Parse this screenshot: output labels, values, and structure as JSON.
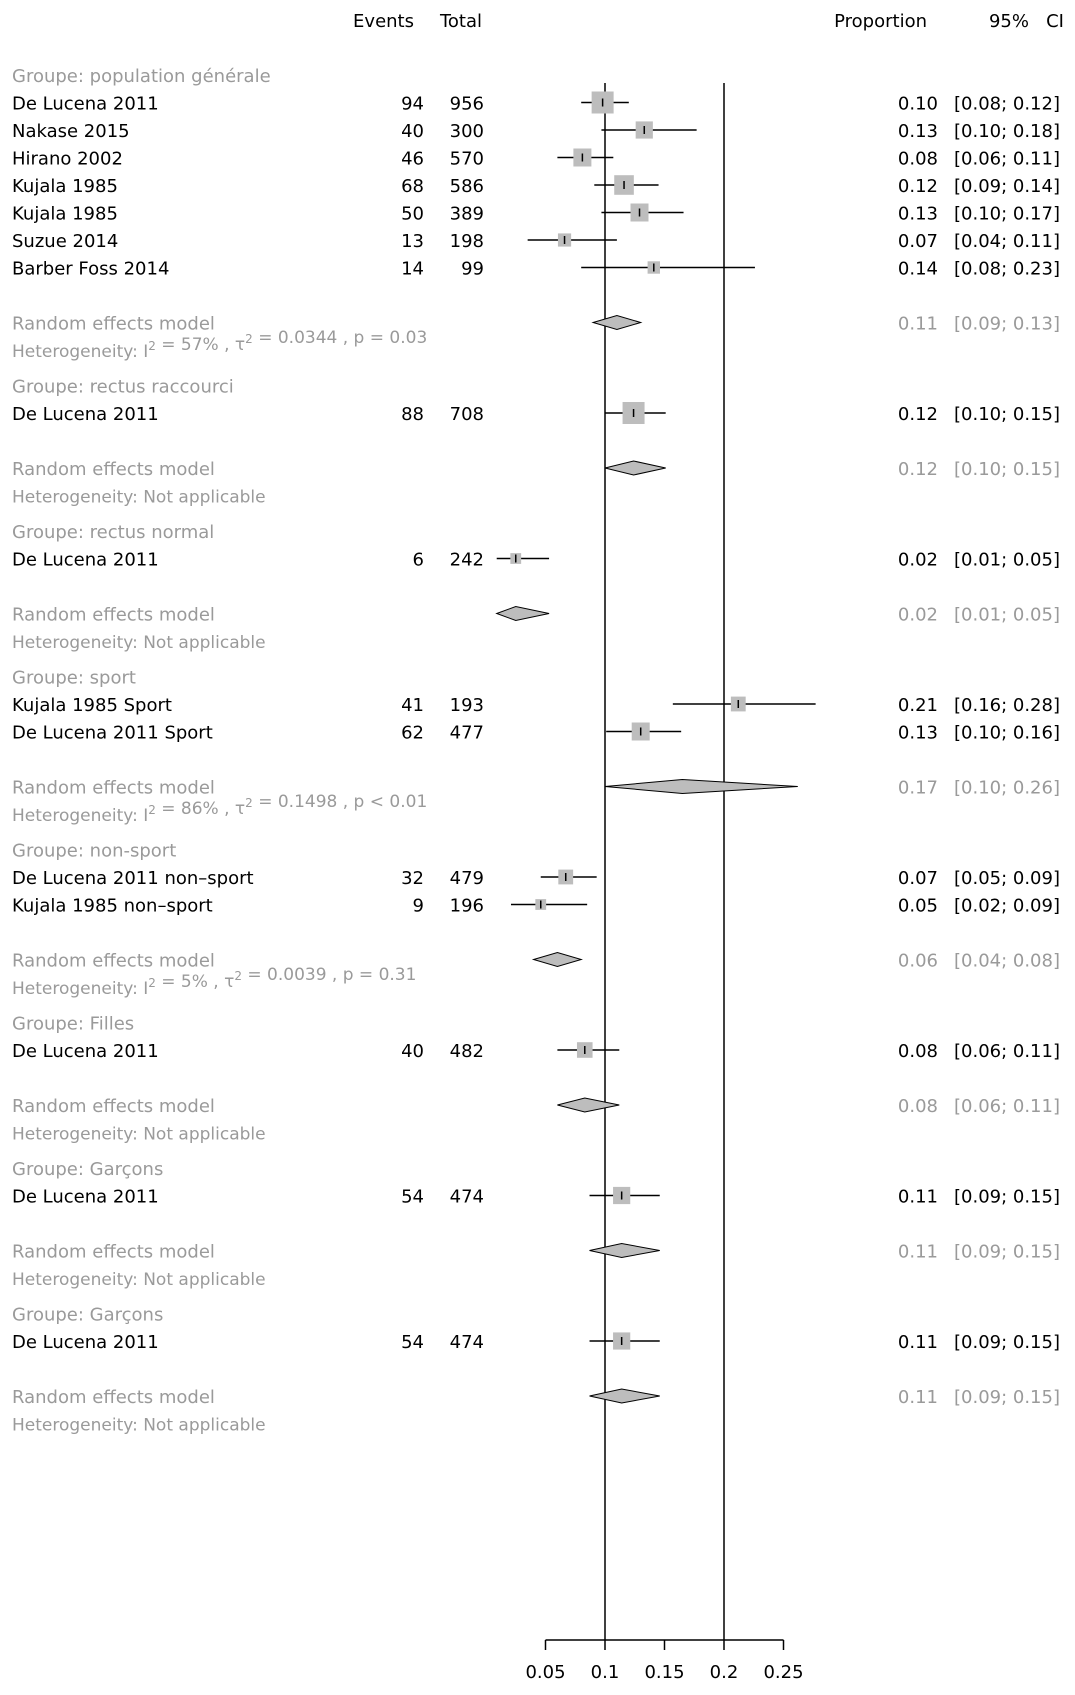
{
  "chart_data": {
    "type": "forest",
    "headers": {
      "events": "Events",
      "total": "Total",
      "proportion": "Proportion",
      "ci": "95%   CI"
    },
    "x_axis": {
      "ticks": [
        0.05,
        0.1,
        0.15,
        0.2,
        0.25
      ],
      "tick_labels": [
        "0.05",
        "0.1",
        "0.15",
        "0.2",
        "0.25"
      ],
      "range": [
        0.05,
        0.25
      ]
    },
    "reference_lines": [
      0.1,
      0.2
    ],
    "groups": [
      {
        "label": "Groupe: population générale",
        "studies": [
          {
            "name": "De Lucena 2011",
            "events": "94",
            "total": "956",
            "prop": "0.10",
            "ci": "[0.08; 0.12]",
            "est": 0.098,
            "lo": 0.08,
            "hi": 0.12,
            "w": 1.0
          },
          {
            "name": "Nakase 2015",
            "events": "40",
            "total": "300",
            "prop": "0.13",
            "ci": "[0.10; 0.18]",
            "est": 0.133,
            "lo": 0.097,
            "hi": 0.177,
            "w": 0.7
          },
          {
            "name": "Hirano 2002",
            "events": "46",
            "total": "570",
            "prop": "0.08",
            "ci": "[0.06; 0.11]",
            "est": 0.081,
            "lo": 0.06,
            "hi": 0.107,
            "w": 0.75
          },
          {
            "name": "Kujala 1985",
            "events": "68",
            "total": "586",
            "prop": "0.12",
            "ci": "[0.09; 0.14]",
            "est": 0.116,
            "lo": 0.091,
            "hi": 0.145,
            "w": 0.85
          },
          {
            "name": "Kujala 1985",
            "events": "50",
            "total": "389",
            "prop": "0.13",
            "ci": "[0.10; 0.17]",
            "est": 0.129,
            "lo": 0.097,
            "hi": 0.166,
            "w": 0.75
          },
          {
            "name": "Suzue 2014",
            "events": "13",
            "total": "198",
            "prop": "0.07",
            "ci": "[0.04; 0.11]",
            "est": 0.066,
            "lo": 0.035,
            "hi": 0.11,
            "w": 0.45
          },
          {
            "name": "Barber Foss 2014",
            "events": "14",
            "total": "99",
            "prop": "0.14",
            "ci": "[0.08; 0.23]",
            "est": 0.141,
            "lo": 0.08,
            "hi": 0.226,
            "w": 0.4
          }
        ],
        "model": {
          "label": "Random effects model",
          "prop": "0.11",
          "ci": "[0.09; 0.13]",
          "est": 0.11,
          "lo": 0.09,
          "hi": 0.13
        },
        "heterogeneity": {
          "kind": "stats",
          "prefix": "Heterogeneity:  I",
          "i2": " = 57% ,  τ",
          "tau2": " = 0.0344 ,  p = 0.03"
        }
      },
      {
        "label": "Groupe:  rectus raccourci",
        "studies": [
          {
            "name": "De Lucena 2011",
            "events": "88",
            "total": "708",
            "prop": "0.12",
            "ci": "[0.10; 0.15]",
            "est": 0.124,
            "lo": 0.1,
            "hi": 0.151,
            "w": 1.0
          }
        ],
        "model": {
          "label": "Random effects model",
          "prop": "0.12",
          "ci": "[0.10; 0.15]",
          "est": 0.124,
          "lo": 0.1,
          "hi": 0.151
        },
        "heterogeneity": {
          "kind": "text",
          "text": "Heterogeneity: Not applicable"
        }
      },
      {
        "label": "Groupe: rectus normal",
        "studies": [
          {
            "name": "De Lucena 2011",
            "events": "6",
            "total": "242",
            "prop": "0.02",
            "ci": "[0.01; 0.05]",
            "est": 0.025,
            "lo": 0.009,
            "hi": 0.053,
            "w": 0.3
          }
        ],
        "model": {
          "label": "Random effects model",
          "prop": "0.02",
          "ci": "[0.01; 0.05]",
          "est": 0.025,
          "lo": 0.009,
          "hi": 0.053
        },
        "heterogeneity": {
          "kind": "text",
          "text": "Heterogeneity: Not applicable"
        }
      },
      {
        "label": "Groupe: sport",
        "studies": [
          {
            "name": "Kujala 1985 Sport",
            "events": "41",
            "total": "193",
            "prop": "0.21",
            "ci": "[0.16; 0.28]",
            "est": 0.212,
            "lo": 0.157,
            "hi": 0.277,
            "w": 0.55
          },
          {
            "name": "De Lucena 2011 Sport",
            "events": "62",
            "total": "477",
            "prop": "0.13",
            "ci": "[0.10; 0.16]",
            "est": 0.13,
            "lo": 0.101,
            "hi": 0.164,
            "w": 0.75
          }
        ],
        "model": {
          "label": "Random effects model",
          "prop": "0.17",
          "ci": "[0.10; 0.26]",
          "est": 0.165,
          "lo": 0.1,
          "hi": 0.262
        },
        "heterogeneity": {
          "kind": "stats",
          "prefix": "Heterogeneity:  I",
          "i2": " = 86% ,  τ",
          "tau2": " = 0.1498 ,  p < 0.01"
        }
      },
      {
        "label": "Groupe: non-sport",
        "studies": [
          {
            "name": "De Lucena 2011 non–sport",
            "events": "32",
            "total": "479",
            "prop": "0.07",
            "ci": "[0.05; 0.09]",
            "est": 0.067,
            "lo": 0.046,
            "hi": 0.093,
            "w": 0.55
          },
          {
            "name": "Kujala 1985 non–sport",
            "events": "9",
            "total": "196",
            "prop": "0.05",
            "ci": "[0.02; 0.09]",
            "est": 0.046,
            "lo": 0.021,
            "hi": 0.085,
            "w": 0.3
          }
        ],
        "model": {
          "label": "Random effects model",
          "prop": "0.06",
          "ci": "[0.04; 0.08]",
          "est": 0.06,
          "lo": 0.04,
          "hi": 0.08
        },
        "heterogeneity": {
          "kind": "stats",
          "prefix": "Heterogeneity:  I",
          "i2": " = 5% ,  τ",
          "tau2": " = 0.0039 ,  p = 0.31"
        }
      },
      {
        "label": "Groupe: Filles",
        "studies": [
          {
            "name": "De Lucena 2011",
            "events": "40",
            "total": "482",
            "prop": "0.08",
            "ci": "[0.06; 0.11]",
            "est": 0.083,
            "lo": 0.06,
            "hi": 0.112,
            "w": 0.6
          }
        ],
        "model": {
          "label": "Random effects model",
          "prop": "0.08",
          "ci": "[0.06; 0.11]",
          "est": 0.083,
          "lo": 0.06,
          "hi": 0.112
        },
        "heterogeneity": {
          "kind": "text",
          "text": "Heterogeneity: Not applicable"
        }
      },
      {
        "label": "Groupe: Garçons",
        "studies": [
          {
            "name": "De Lucena 2011",
            "events": "54",
            "total": "474",
            "prop": "0.11",
            "ci": "[0.09; 0.15]",
            "est": 0.114,
            "lo": 0.087,
            "hi": 0.146,
            "w": 0.7
          }
        ],
        "model": {
          "label": "Random effects model",
          "prop": "0.11",
          "ci": "[0.09; 0.15]",
          "est": 0.114,
          "lo": 0.087,
          "hi": 0.146
        },
        "heterogeneity": {
          "kind": "text",
          "text": "Heterogeneity: Not applicable"
        }
      },
      {
        "label": "Groupe: Garçons",
        "studies": [
          {
            "name": "De Lucena 2011",
            "events": "54",
            "total": "474",
            "prop": "0.11",
            "ci": "[0.09; 0.15]",
            "est": 0.114,
            "lo": 0.087,
            "hi": 0.146,
            "w": 0.7
          }
        ],
        "model": {
          "label": "Random effects model",
          "prop": "0.11",
          "ci": "[0.09; 0.15]",
          "est": 0.114,
          "lo": 0.087,
          "hi": 0.146
        },
        "heterogeneity": {
          "kind": "text",
          "text": "Heterogeneity: Not applicable"
        }
      }
    ]
  }
}
